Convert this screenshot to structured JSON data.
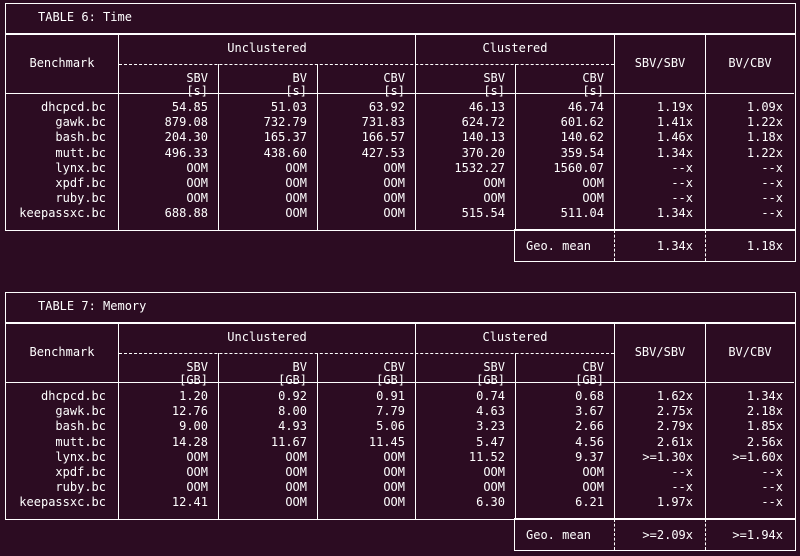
{
  "tables": [
    {
      "caption": "TABLE 6: Time",
      "header": {
        "benchmark": "Benchmark",
        "unclustered": "Unclustered",
        "clustered": "Clustered",
        "cols": [
          "SBV",
          "BV",
          "CBV",
          "SBV",
          "CBV"
        ],
        "units": [
          "[s]",
          "[s]",
          "[s]",
          "[s]",
          "[s]"
        ],
        "ratio1": "SBV/SBV",
        "ratio2": "BV/CBV"
      },
      "rows": [
        [
          "dhcpcd.bc",
          "54.85",
          "51.03",
          "63.92",
          "46.13",
          "46.74",
          "1.19x",
          "1.09x"
        ],
        [
          "gawk.bc",
          "879.08",
          "732.79",
          "731.83",
          "624.72",
          "601.62",
          "1.41x",
          "1.22x"
        ],
        [
          "bash.bc",
          "204.30",
          "165.37",
          "166.57",
          "140.13",
          "140.62",
          "1.46x",
          "1.18x"
        ],
        [
          "mutt.bc",
          "496.33",
          "438.60",
          "427.53",
          "370.20",
          "359.54",
          "1.34x",
          "1.22x"
        ],
        [
          "lynx.bc",
          "OOM",
          "OOM",
          "OOM",
          "1532.27",
          "1560.07",
          "--x",
          "--x"
        ],
        [
          "xpdf.bc",
          "OOM",
          "OOM",
          "OOM",
          "OOM",
          "OOM",
          "--x",
          "--x"
        ],
        [
          "ruby.bc",
          "OOM",
          "OOM",
          "OOM",
          "OOM",
          "OOM",
          "--x",
          "--x"
        ],
        [
          "keepassxc.bc",
          "688.88",
          "OOM",
          "OOM",
          "515.54",
          "511.04",
          "1.34x",
          "--x"
        ]
      ],
      "geo": {
        "label": "Geo. mean",
        "ratio1": "1.34x",
        "ratio2": "1.18x"
      }
    },
    {
      "caption": "TABLE 7: Memory",
      "header": {
        "benchmark": "Benchmark",
        "unclustered": "Unclustered",
        "clustered": "Clustered",
        "cols": [
          "SBV",
          "BV",
          "CBV",
          "SBV",
          "CBV"
        ],
        "units": [
          "[GB]",
          "[GB]",
          "[GB]",
          "[GB]",
          "[GB]"
        ],
        "ratio1": "SBV/SBV",
        "ratio2": "BV/CBV"
      },
      "rows": [
        [
          "dhcpcd.bc",
          "1.20",
          "0.92",
          "0.91",
          "0.74",
          "0.68",
          "1.62x",
          "1.34x"
        ],
        [
          "gawk.bc",
          "12.76",
          "8.00",
          "7.79",
          "4.63",
          "3.67",
          "2.75x",
          "2.18x"
        ],
        [
          "bash.bc",
          "9.00",
          "4.93",
          "5.06",
          "3.23",
          "2.66",
          "2.79x",
          "1.85x"
        ],
        [
          "mutt.bc",
          "14.28",
          "11.67",
          "11.45",
          "5.47",
          "4.56",
          "2.61x",
          "2.56x"
        ],
        [
          "lynx.bc",
          "OOM",
          "OOM",
          "OOM",
          "11.52",
          "9.37",
          ">=1.30x",
          ">=1.60x"
        ],
        [
          "xpdf.bc",
          "OOM",
          "OOM",
          "OOM",
          "OOM",
          "OOM",
          "--x",
          "--x"
        ],
        [
          "ruby.bc",
          "OOM",
          "OOM",
          "OOM",
          "OOM",
          "OOM",
          "--x",
          "--x"
        ],
        [
          "keepassxc.bc",
          "12.41",
          "OOM",
          "OOM",
          "6.30",
          "6.21",
          "1.97x",
          "--x"
        ]
      ],
      "geo": {
        "label": "Geo. mean",
        "ratio1": ">=2.09x",
        "ratio2": ">=1.94x"
      }
    }
  ]
}
